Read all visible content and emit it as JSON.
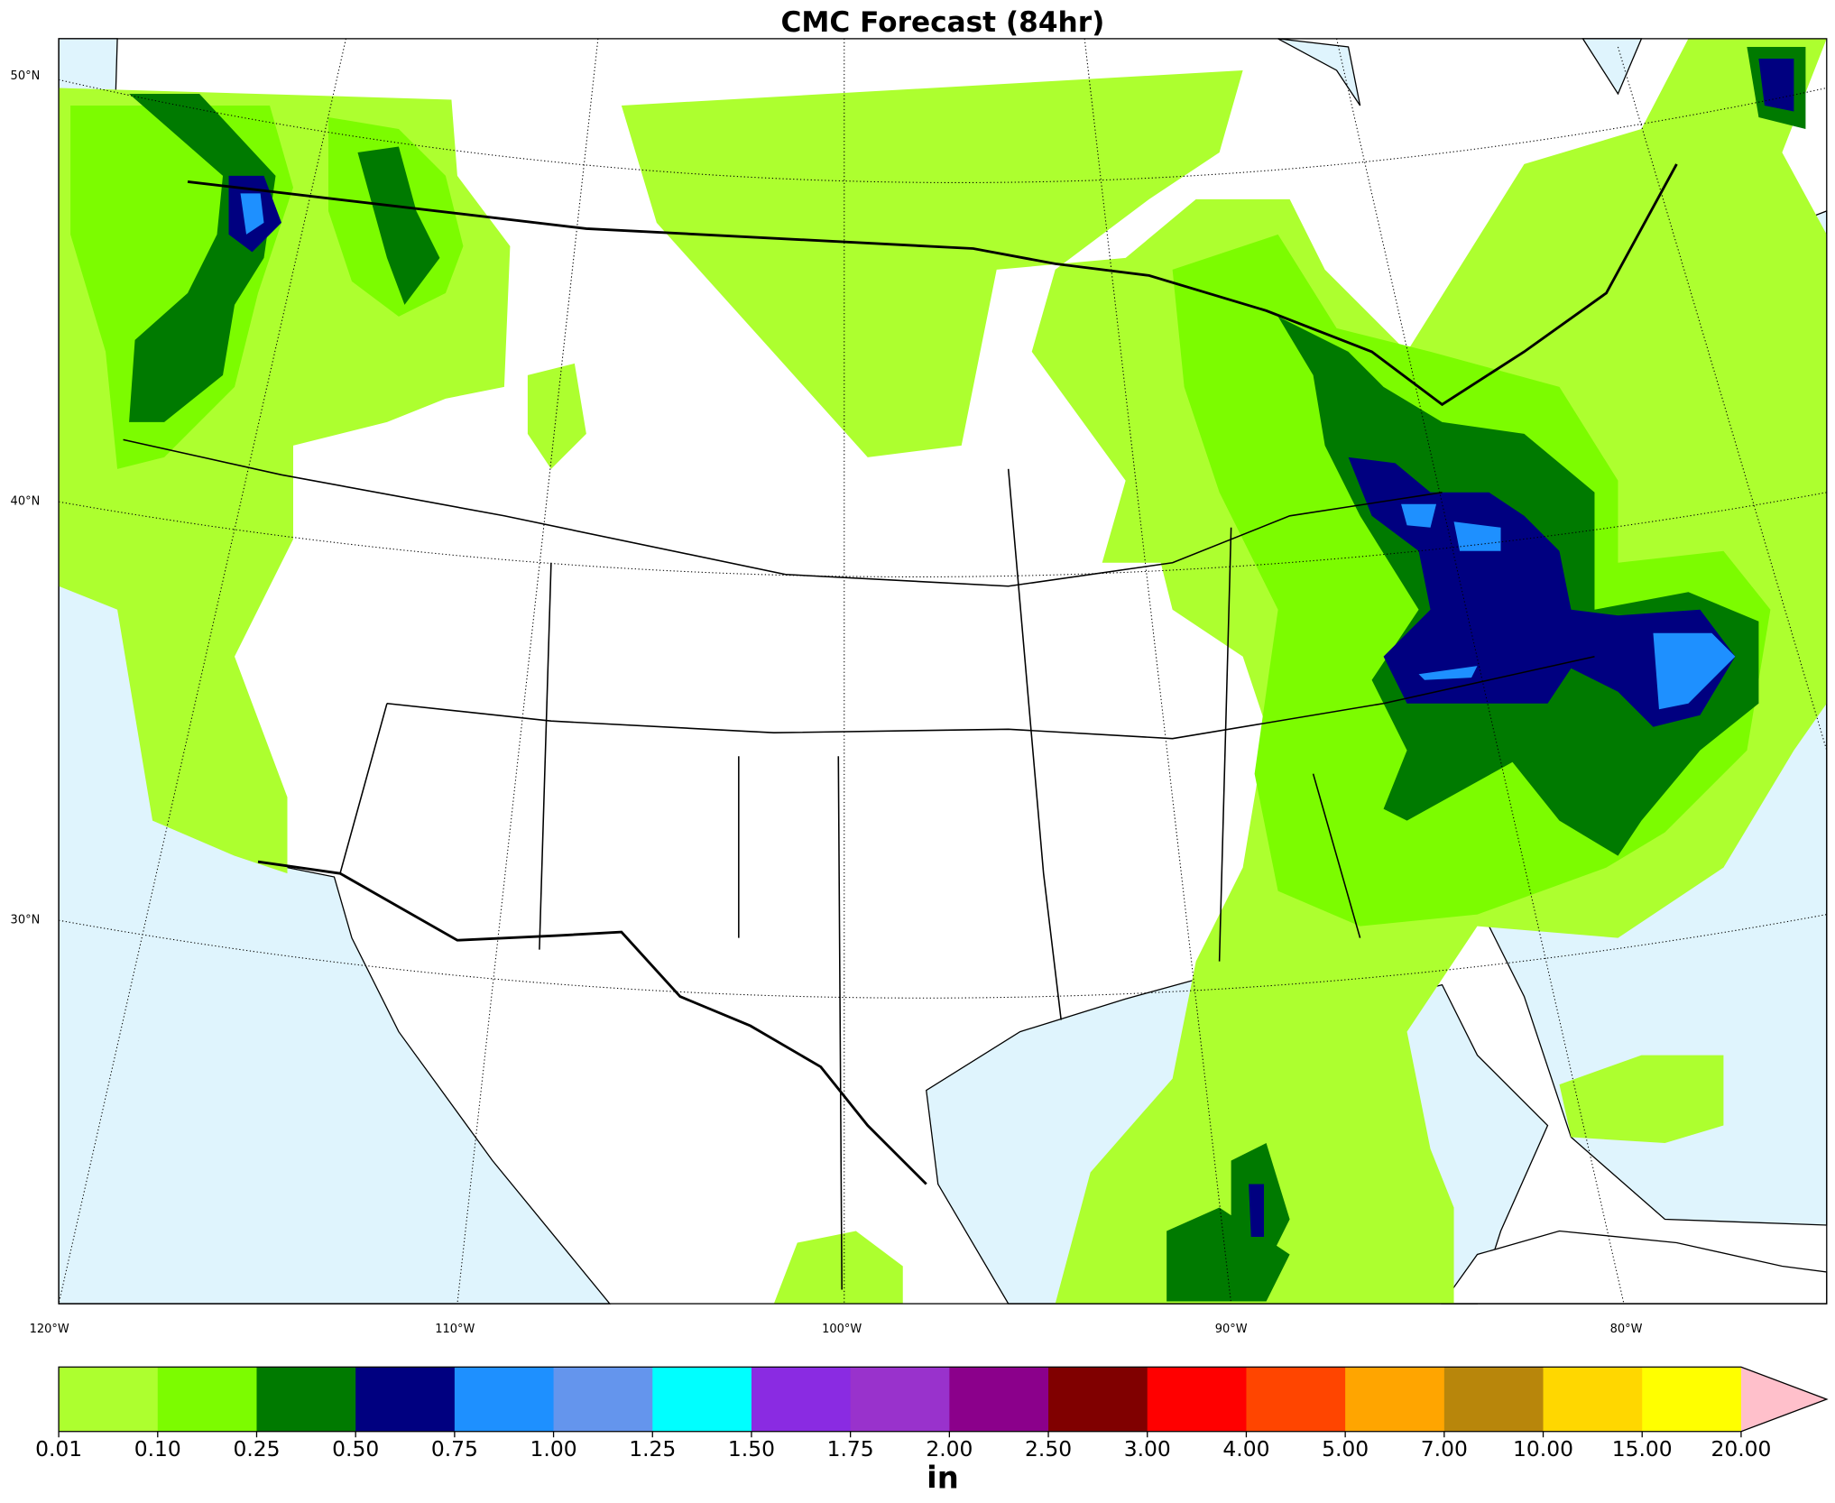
{
  "map": {
    "title": "CMC Forecast (84hr)",
    "lat_labels": [
      "50°N",
      "40°N",
      "30°N"
    ],
    "lon_labels": [
      "120°W",
      "110°W",
      "100°W",
      "90°W",
      "80°W"
    ]
  },
  "colorbar": {
    "label": "in",
    "levels": [
      0.01,
      {
        "value": 0.1,
        "label": "0.10"
      },
      0.25,
      {
        "value": 0.5,
        "label": "0.50"
      },
      0.75,
      {
        "value": 1,
        "label": "1.00"
      },
      1.25,
      {
        "value": 1.5,
        "label": "1.50"
      },
      1.75,
      {
        "value": 2,
        "label": "2.00"
      },
      {
        "value": 2.5,
        "label": "2.50"
      },
      {
        "value": 3,
        "label": "3.00"
      },
      {
        "value": 4,
        "label": "4.00"
      },
      {
        "value": 5,
        "label": "5.00"
      },
      {
        "value": 7,
        "label": "7.00"
      },
      {
        "value": 10,
        "label": "10.00"
      },
      {
        "value": 15,
        "label": "15.00"
      },
      {
        "value": 20,
        "label": "20.00"
      }
    ],
    "colors": [
      "#adff2f",
      "#7cfc00",
      "#007a00",
      "#000080",
      "#1e90ff",
      "#6495ed",
      "#00ffff",
      "#8a2be2",
      "#9932cc",
      "#8b008b",
      "#800000",
      "#ff0000",
      "#ff4500",
      "#ffa500",
      "#b8860b",
      "#ffd700",
      "#ffff00"
    ],
    "extend_color": "#ffc0cb"
  }
}
